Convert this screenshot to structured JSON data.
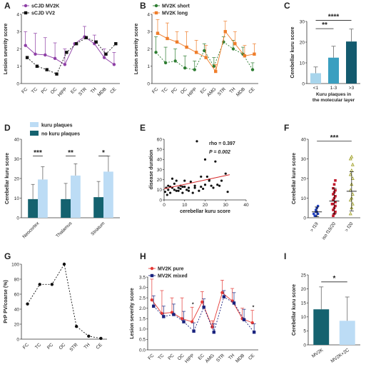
{
  "panels": [
    {
      "id": "A",
      "label": "A",
      "type": "line",
      "ylabel": "Lesion severity score",
      "ylim": [
        0,
        4
      ],
      "yticks": [
        0,
        1,
        2,
        3,
        4
      ],
      "categories": [
        "FC",
        "TC",
        "PC",
        "OC",
        "HIPP",
        "EC",
        "STR",
        "TH",
        "MDB",
        "CE"
      ],
      "series": [
        {
          "name": "sCJD MV2K",
          "color": "#8e3fa6",
          "marker": "circle",
          "dash": "",
          "values": [
            2.2,
            1.7,
            1.65,
            1.45,
            1.1,
            2.3,
            2.7,
            2.3,
            1.5,
            1.1
          ],
          "err": [
            0.8,
            1.2,
            1.0,
            0.9,
            0.9,
            0.0,
            0.6,
            0.5,
            0.5,
            0.7
          ]
        },
        {
          "name": "sCJD VV2",
          "color": "#111111",
          "marker": "square",
          "dash": "2,2",
          "values": [
            1.5,
            1.0,
            0.8,
            0.55,
            1.8,
            2.3,
            2.65,
            2.4,
            1.7,
            2.3
          ],
          "err": [
            0.0,
            0.0,
            0.0,
            0.0,
            0.0,
            0.0,
            0.0,
            0.0,
            0.0,
            0.0
          ]
        }
      ]
    },
    {
      "id": "B",
      "label": "B",
      "type": "line",
      "ylabel": "Lesion severity score",
      "ylim": [
        0,
        4
      ],
      "yticks": [
        0,
        1,
        2,
        3,
        4
      ],
      "categories": [
        "FC",
        "TC",
        "PC",
        "OC",
        "HIPP",
        "EC",
        "AMG",
        "STR",
        "TH",
        "MDB",
        "CE"
      ],
      "series": [
        {
          "name": "MV2K short",
          "color": "#2e7d32",
          "marker": "circle",
          "dash": "2,2",
          "values": [
            1.8,
            1.2,
            1.3,
            0.9,
            0.8,
            1.9,
            1.0,
            2.4,
            2.0,
            1.7,
            0.8
          ],
          "err": [
            0.9,
            0.9,
            0.7,
            0.7,
            0.5,
            0.4,
            0.5,
            0.3,
            0.5,
            0.4,
            0.4
          ]
        },
        {
          "name": "MV2K long",
          "color": "#ef7d2a",
          "marker": "square",
          "dash": "",
          "values": [
            2.9,
            2.6,
            2.4,
            2.1,
            1.8,
            1.5,
            0.7,
            3.0,
            2.3,
            1.6,
            1.7
          ],
          "err": [
            0.8,
            0.9,
            0.6,
            0.9,
            0.7,
            0.7,
            0.4,
            0.6,
            0.7,
            0.6,
            0.6
          ]
        }
      ]
    },
    {
      "id": "C",
      "label": "C",
      "type": "bar",
      "ylabel": "Cerebellar kuru score",
      "xlabel": "Kuru plaques in the molecular layer",
      "ylim": [
        0,
        30
      ],
      "yticks": [
        0,
        10,
        20,
        30
      ],
      "categories": [
        "<1",
        "1-3",
        ">3"
      ],
      "values": [
        5,
        12.5,
        20.3
      ],
      "err": [
        3,
        5.5,
        6
      ],
      "colors": [
        "#a8d5ec",
        "#3a9fc0",
        "#135a6e"
      ],
      "brackets": [
        {
          "from": 0,
          "to": 1,
          "level": 26.5,
          "text": "**"
        },
        {
          "from": 0,
          "to": 2,
          "level": 30.5,
          "text": "****"
        }
      ]
    },
    {
      "id": "D",
      "label": "D",
      "type": "groupbar",
      "ylabel": "Cerebellar kuru score",
      "ylim": [
        0,
        40
      ],
      "yticks": [
        0,
        10,
        20,
        30,
        40
      ],
      "categories": [
        "Neocortex",
        "Thalamus",
        "Striatum"
      ],
      "series": [
        {
          "name": "kuru plaques",
          "color": "#bcdcf5",
          "values": [
            19.5,
            21.5,
            23.5
          ],
          "err": [
            6.5,
            6,
            8
          ]
        },
        {
          "name": "no kuru plaques",
          "color": "#14626f",
          "values": [
            9.5,
            9.5,
            10.5
          ],
          "err": [
            7.5,
            8,
            8
          ]
        }
      ],
      "sig": [
        "***",
        "**",
        "*"
      ]
    },
    {
      "id": "E",
      "label": "E",
      "type": "scatter",
      "xlabel": "cerebellar kuru score",
      "ylabel": "disease duration",
      "xlim": [
        0,
        40
      ],
      "ylim": [
        0,
        60
      ],
      "xticks": [
        0,
        10,
        20,
        30,
        40
      ],
      "yticks": [
        0,
        10,
        20,
        30,
        40,
        50,
        60
      ],
      "rho_text": "rho = 0.397",
      "p_text": "P = 0.002",
      "fit": {
        "x": [
          0,
          32
        ],
        "y": [
          11,
          25
        ],
        "color": "#d62728"
      },
      "points": [
        [
          0.5,
          8
        ],
        [
          1,
          12
        ],
        [
          1.5,
          5
        ],
        [
          2,
          14
        ],
        [
          2,
          10
        ],
        [
          3,
          13
        ],
        [
          3,
          7
        ],
        [
          4,
          21
        ],
        [
          4,
          12
        ],
        [
          5,
          16
        ],
        [
          5,
          10
        ],
        [
          6,
          9
        ],
        [
          6,
          19
        ],
        [
          7,
          12
        ],
        [
          7,
          9
        ],
        [
          8,
          11
        ],
        [
          8,
          14
        ],
        [
          9,
          7
        ],
        [
          9,
          13
        ],
        [
          10,
          13
        ],
        [
          10,
          19
        ],
        [
          11,
          10
        ],
        [
          12,
          9
        ],
        [
          12,
          12
        ],
        [
          13,
          18
        ],
        [
          14,
          7
        ],
        [
          15,
          12
        ],
        [
          15,
          14
        ],
        [
          16,
          58
        ],
        [
          17,
          9
        ],
        [
          18,
          23
        ],
        [
          18,
          13
        ],
        [
          19,
          11
        ],
        [
          20,
          15
        ],
        [
          20,
          40
        ],
        [
          21,
          23
        ],
        [
          22,
          20
        ],
        [
          22,
          19
        ],
        [
          23,
          14
        ],
        [
          24,
          12
        ],
        [
          25,
          38
        ],
        [
          26,
          15
        ],
        [
          27,
          14
        ],
        [
          28,
          19
        ],
        [
          30,
          26
        ],
        [
          31,
          8
        ]
      ]
    },
    {
      "id": "F",
      "label": "F",
      "type": "dot",
      "ylabel": "Cerebellar kuru score",
      "ylim": [
        0,
        40
      ],
      "yticks": [
        0,
        10,
        20,
        30,
        40
      ],
      "categories": [
        "> f19",
        "iso f19/20",
        "> f20"
      ],
      "groups": [
        {
          "color": "#1f3fbf",
          "marker": "circle",
          "mean": 3,
          "sd": 2.5,
          "values": [
            1,
            1,
            2,
            2,
            3,
            3,
            4,
            5,
            6
          ]
        },
        {
          "color": "#c0182a",
          "marker": "square",
          "mean": 8.5,
          "sd": 6.5,
          "values": [
            1,
            2,
            3,
            4,
            5,
            6,
            7,
            7,
            8,
            9,
            10,
            11,
            12,
            13,
            14,
            15,
            17,
            19
          ]
        },
        {
          "color": "#9a9a1a",
          "marker": "triangle",
          "mean": 13.5,
          "sd": 10,
          "values": [
            2,
            5,
            7,
            9,
            10,
            12,
            14,
            17,
            20,
            22,
            24,
            27,
            30,
            31
          ]
        }
      ],
      "sig": "***"
    },
    {
      "id": "G",
      "label": "G",
      "type": "line",
      "ylabel": "PrP PV/coarse (%)",
      "ylim": [
        0,
        100
      ],
      "yticks": [
        0,
        20,
        40,
        60,
        80,
        100
      ],
      "categories": [
        "FC",
        "TC",
        "PC",
        "OC",
        "STR",
        "TH",
        "CE"
      ],
      "series": [
        {
          "name": "",
          "color": "#111111",
          "marker": "circle",
          "dash": "2,2",
          "values": [
            47,
            73,
            73,
            100,
            17,
            4,
            1
          ],
          "err": [
            0,
            0,
            0,
            0,
            0,
            0,
            0
          ]
        }
      ]
    },
    {
      "id": "H",
      "label": "H",
      "type": "line",
      "ylabel": "Lesion severity score",
      "ylim": [
        0,
        3.5
      ],
      "yticks": [
        0,
        0.5,
        1.0,
        1.5,
        2.0,
        2.5,
        3.0,
        3.5
      ],
      "categories": [
        "FC",
        "TC",
        "PC",
        "OC",
        "HIPP",
        "EC",
        "AMG",
        "STR",
        "TH",
        "MDB",
        "CE"
      ],
      "series": [
        {
          "name": "MV2K pure",
          "color": "#e53935",
          "marker": "circle",
          "dash": "",
          "values": [
            2.4,
            1.75,
            1.8,
            1.5,
            1.35,
            2.3,
            1.1,
            2.75,
            2.35,
            1.5,
            1.3
          ],
          "err": [
            1.0,
            1.1,
            0.7,
            1.0,
            0.7,
            0.5,
            0.3,
            0.6,
            0.6,
            0.5,
            0.6
          ]
        },
        {
          "name": "MV2K mixed",
          "color": "#1a237e",
          "marker": "square",
          "dash": "2,2",
          "values": [
            2.1,
            1.6,
            1.7,
            1.35,
            0.9,
            2.05,
            0.85,
            2.55,
            2.25,
            1.45,
            0.85
          ],
          "err": [
            0.5,
            0.5,
            0.5,
            0.5,
            0.4,
            0.4,
            0.4,
            0.3,
            0.5,
            0.5,
            0.4
          ]
        }
      ],
      "sig_marks": [
        {
          "index": 4,
          "text": "*"
        },
        {
          "index": 10,
          "text": "*"
        }
      ]
    },
    {
      "id": "I",
      "label": "I",
      "type": "bar",
      "ylabel": "Cerebellar kuru score",
      "ylim": [
        0,
        25
      ],
      "yticks": [
        0,
        5,
        10,
        15,
        20,
        25
      ],
      "categories": [
        "MV2K",
        "MV2K+2C"
      ],
      "values": [
        12.7,
        8.6
      ],
      "err": [
        8,
        8.5
      ],
      "colors": [
        "#14626f",
        "#bcdcf5"
      ],
      "brackets": [
        {
          "from": 0,
          "to": 1,
          "level": 22.5,
          "text": "*"
        }
      ]
    }
  ]
}
